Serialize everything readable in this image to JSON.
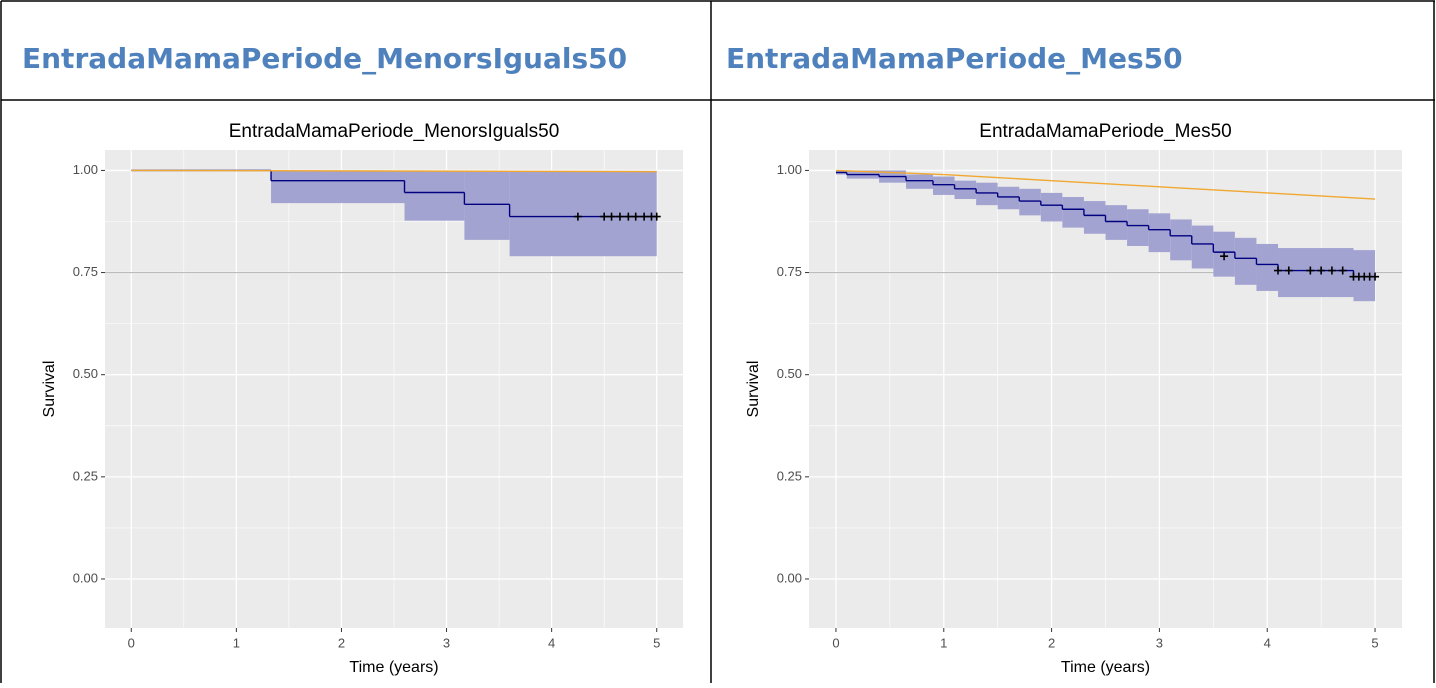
{
  "table": {
    "headers": [
      "EntradaMamaPeriode_MenorsIguals50",
      "EntradaMamaPeriode_Mes50"
    ]
  },
  "chart_data": [
    {
      "type": "line",
      "title": "EntradaMamaPeriode_MenorsIguals50",
      "xlabel": "Time (years)",
      "ylabel": "Survival",
      "xlim": [
        -0.25,
        5.25
      ],
      "xticks": [
        0,
        1,
        2,
        3,
        4,
        5
      ],
      "ylim": [
        -0.12,
        1.05
      ],
      "yticks": [
        {
          "value": 0,
          "label": "0.00"
        },
        {
          "value": 0.25,
          "label": "0.25"
        },
        {
          "value": 0.5,
          "label": "0.50"
        },
        {
          "value": 0.75,
          "label": "0.75"
        },
        {
          "value": 1,
          "label": "1.00"
        }
      ],
      "grid": true,
      "minor_grid": true,
      "hline": 0.75,
      "hline_color": "#b3b3b3",
      "series": [
        {
          "color": "#000080",
          "band_color": "#a3a3d1",
          "x": [
            0,
            1.33,
            2.6,
            3.17,
            3.6,
            5
          ],
          "values": [
            1,
            0.975,
            0.946,
            0.917,
            0.887,
            0.887
          ],
          "lower": [
            1,
            0.92,
            0.877,
            0.83,
            0.79,
            0.79
          ],
          "upper": [
            1,
            0.999,
            0.999,
            0.999,
            0.999,
            0.999
          ],
          "censor_x": [
            4.25,
            4.5,
            4.57,
            4.65,
            4.73,
            4.8,
            4.88,
            4.95,
            5
          ],
          "censor_values": [
            0.887,
            0.887,
            0.887,
            0.887,
            0.887,
            0.887,
            0.887,
            0.887,
            0.887
          ]
        },
        {
          "color": "#f0a830",
          "x": [
            0,
            5
          ],
          "values": [
            1,
            0.997
          ]
        }
      ]
    },
    {
      "type": "line",
      "title": "EntradaMamaPeriode_Mes50",
      "xlabel": "Time (years)",
      "ylabel": "Survival",
      "xlim": [
        -0.25,
        5.25
      ],
      "xticks": [
        0,
        1,
        2,
        3,
        4,
        5
      ],
      "ylim": [
        -0.12,
        1.05
      ],
      "yticks": [
        {
          "value": 0,
          "label": "0.00"
        },
        {
          "value": 0.25,
          "label": "0.25"
        },
        {
          "value": 0.5,
          "label": "0.50"
        },
        {
          "value": 0.75,
          "label": "0.75"
        },
        {
          "value": 1,
          "label": "1.00"
        }
      ],
      "grid": true,
      "minor_grid": true,
      "hline": 0.75,
      "hline_color": "#b3b3b3",
      "series": [
        {
          "color": "#000080",
          "band_color": "#a3a3d1",
          "x": [
            0,
            0.1,
            0.4,
            0.65,
            0.9,
            1.1,
            1.3,
            1.5,
            1.7,
            1.9,
            2.1,
            2.3,
            2.5,
            2.7,
            2.9,
            3.1,
            3.3,
            3.5,
            3.7,
            3.9,
            4.1,
            4.8,
            5
          ],
          "values": [
            0.995,
            0.99,
            0.985,
            0.975,
            0.965,
            0.955,
            0.945,
            0.935,
            0.925,
            0.915,
            0.905,
            0.89,
            0.875,
            0.865,
            0.855,
            0.84,
            0.82,
            0.8,
            0.785,
            0.77,
            0.755,
            0.74,
            0.74
          ],
          "lower": [
            0.99,
            0.98,
            0.97,
            0.955,
            0.94,
            0.93,
            0.915,
            0.905,
            0.89,
            0.875,
            0.86,
            0.845,
            0.83,
            0.815,
            0.8,
            0.78,
            0.76,
            0.74,
            0.72,
            0.705,
            0.69,
            0.68,
            0.68
          ],
          "upper": [
            1,
            1,
            1,
            0.99,
            0.985,
            0.975,
            0.97,
            0.96,
            0.955,
            0.945,
            0.935,
            0.925,
            0.915,
            0.905,
            0.895,
            0.88,
            0.865,
            0.85,
            0.835,
            0.82,
            0.81,
            0.805,
            0.805
          ],
          "censor_x": [
            3.6,
            4.1,
            4.2,
            4.4,
            4.5,
            4.6,
            4.7,
            4.8,
            4.85,
            4.9,
            4.95,
            5
          ],
          "censor_values": [
            0.79,
            0.755,
            0.755,
            0.755,
            0.755,
            0.755,
            0.755,
            0.74,
            0.74,
            0.74,
            0.74,
            0.74
          ]
        },
        {
          "color": "#f0a830",
          "x": [
            0,
            1,
            2,
            3,
            4,
            5
          ],
          "values": [
            1,
            0.99,
            0.975,
            0.96,
            0.945,
            0.93
          ]
        }
      ]
    }
  ]
}
